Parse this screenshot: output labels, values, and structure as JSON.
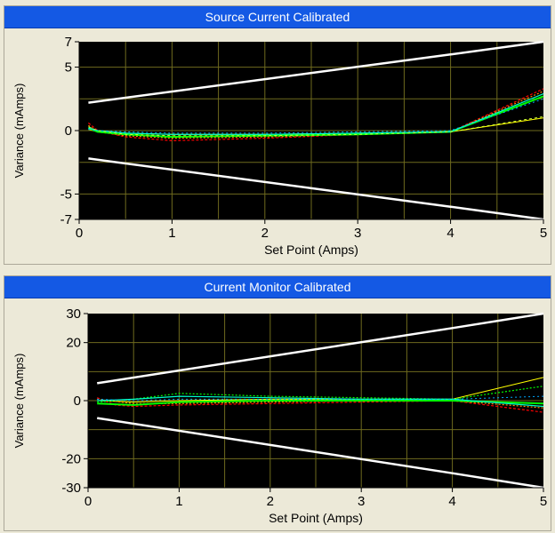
{
  "chart_data": [
    {
      "type": "line",
      "title": "Source Current Calibrated",
      "xlabel": "Set Point (Amps)",
      "ylabel": "Variance (mAmps)",
      "xlim": [
        0,
        5
      ],
      "ylim": [
        -7,
        7
      ],
      "xticks": [
        0,
        1,
        2,
        3,
        4,
        5
      ],
      "yticks": [
        -7,
        -5,
        0,
        5,
        7
      ],
      "grid": true,
      "colors": {
        "plot_bg": "#000000",
        "grid": "#6e6a1e",
        "title_bar": "#1459e4"
      },
      "series": [
        {
          "color": "#ffffff",
          "width": 2.5,
          "dash": "",
          "x": [
            0.1,
            4,
            5
          ],
          "y": [
            2.2,
            6,
            7
          ]
        },
        {
          "color": "#ffffff",
          "width": 2.5,
          "dash": "",
          "x": [
            0.1,
            4,
            5
          ],
          "y": [
            -2.2,
            -6,
            -7
          ]
        },
        {
          "color": "#ffff00",
          "width": 1,
          "dash": "",
          "x": [
            0.1,
            0.2,
            0.5,
            1,
            2,
            3,
            4,
            5
          ],
          "y": [
            0.1,
            -0.1,
            -0.2,
            -0.3,
            -0.3,
            -0.2,
            -0.1,
            1.0
          ]
        },
        {
          "color": "#ff0000",
          "width": 1.2,
          "dash": "3,2",
          "x": [
            0.1,
            0.2,
            0.5,
            1,
            1.5,
            2,
            3,
            4,
            5
          ],
          "y": [
            0.6,
            0,
            -0.5,
            -0.8,
            -0.7,
            -0.6,
            -0.3,
            -0.1,
            3.3
          ]
        },
        {
          "color": "#ff8c00",
          "width": 1.2,
          "dash": "2,2",
          "x": [
            0.1,
            0.2,
            0.5,
            1,
            2,
            3,
            4,
            5
          ],
          "y": [
            0.4,
            -0.1,
            -0.4,
            -0.6,
            -0.5,
            -0.3,
            -0.1,
            3.1
          ]
        },
        {
          "color": "#00ff00",
          "width": 2,
          "dash": "",
          "x": [
            0.1,
            0.2,
            0.5,
            1,
            2,
            3,
            4,
            5
          ],
          "y": [
            0.2,
            -0.1,
            -0.3,
            -0.5,
            -0.4,
            -0.3,
            -0.1,
            2.7
          ]
        },
        {
          "color": "#00ffcc",
          "width": 1.2,
          "dash": "",
          "x": [
            0.1,
            0.2,
            0.5,
            1,
            2,
            3,
            4,
            5
          ],
          "y": [
            0.2,
            0,
            -0.2,
            -0.3,
            -0.3,
            -0.2,
            -0.1,
            2.9
          ]
        },
        {
          "color": "#00aaff",
          "width": 1,
          "dash": "2,3",
          "x": [
            0.1,
            0.2,
            0.5,
            1,
            2,
            3,
            4,
            5
          ],
          "y": [
            0.1,
            0,
            -0.1,
            -0.2,
            -0.2,
            -0.1,
            0,
            2.5
          ]
        },
        {
          "color": "#ccff33",
          "width": 1,
          "dash": "3,3",
          "x": [
            0.1,
            0.2,
            0.5,
            1,
            2,
            3,
            4,
            5
          ],
          "y": [
            0.3,
            0,
            -0.3,
            -0.4,
            -0.4,
            -0.3,
            -0.1,
            1.1
          ]
        }
      ]
    },
    {
      "type": "line",
      "title": "Current Monitor Calibrated",
      "xlabel": "Set Point (Amps)",
      "ylabel": "Variance (mAmps)",
      "xlim": [
        0,
        5
      ],
      "ylim": [
        -30,
        30
      ],
      "xticks": [
        0,
        1,
        2,
        3,
        4,
        5
      ],
      "yticks": [
        -30,
        -20,
        0,
        20,
        30
      ],
      "grid": true,
      "colors": {
        "plot_bg": "#000000",
        "grid": "#6e6a1e",
        "title_bar": "#1459e4"
      },
      "series": [
        {
          "color": "#ffffff",
          "width": 2.5,
          "dash": "",
          "x": [
            0.1,
            4,
            5
          ],
          "y": [
            6,
            25,
            30
          ]
        },
        {
          "color": "#ffffff",
          "width": 2.5,
          "dash": "",
          "x": [
            0.1,
            4,
            5
          ],
          "y": [
            -6,
            -25,
            -30
          ]
        },
        {
          "color": "#ffff00",
          "width": 1,
          "dash": "",
          "x": [
            0.1,
            0.5,
            1,
            2,
            3,
            4,
            5
          ],
          "y": [
            0,
            -0.5,
            0,
            0.5,
            0.5,
            0.5,
            8
          ]
        },
        {
          "color": "#ff0000",
          "width": 1.2,
          "dash": "3,2",
          "x": [
            0.1,
            0.3,
            0.5,
            1,
            2,
            3,
            4,
            5
          ],
          "y": [
            1,
            -1.5,
            -2,
            -1.5,
            -1,
            -0.5,
            0,
            -4
          ]
        },
        {
          "color": "#ff8c00",
          "width": 1.2,
          "dash": "2,2",
          "x": [
            0.1,
            0.5,
            1,
            2,
            3,
            4,
            5
          ],
          "y": [
            0.5,
            -1,
            -1,
            -0.5,
            0,
            0,
            -2.5
          ]
        },
        {
          "color": "#00ff00",
          "width": 1.2,
          "dash": "2,2",
          "x": [
            0.1,
            0.5,
            1,
            2,
            3,
            4,
            5
          ],
          "y": [
            -0.5,
            0.5,
            2.5,
            1.5,
            1,
            0.5,
            5
          ]
        },
        {
          "color": "#00ff00",
          "width": 2,
          "dash": "",
          "x": [
            0.1,
            0.5,
            1,
            2,
            3,
            4,
            5
          ],
          "y": [
            -1,
            -1.5,
            -0.5,
            0,
            0,
            0,
            -1
          ]
        },
        {
          "color": "#00ffcc",
          "width": 1.2,
          "dash": "",
          "x": [
            0.1,
            0.5,
            1,
            2,
            3,
            4,
            5
          ],
          "y": [
            0,
            0.5,
            1.5,
            1,
            0.5,
            0.5,
            -2
          ]
        },
        {
          "color": "#00aaff",
          "width": 1,
          "dash": "2,3",
          "x": [
            0.1,
            0.5,
            1,
            2,
            3,
            4,
            5
          ],
          "y": [
            0.5,
            0,
            0.5,
            0.5,
            0.5,
            0.5,
            1.5
          ]
        }
      ]
    }
  ]
}
